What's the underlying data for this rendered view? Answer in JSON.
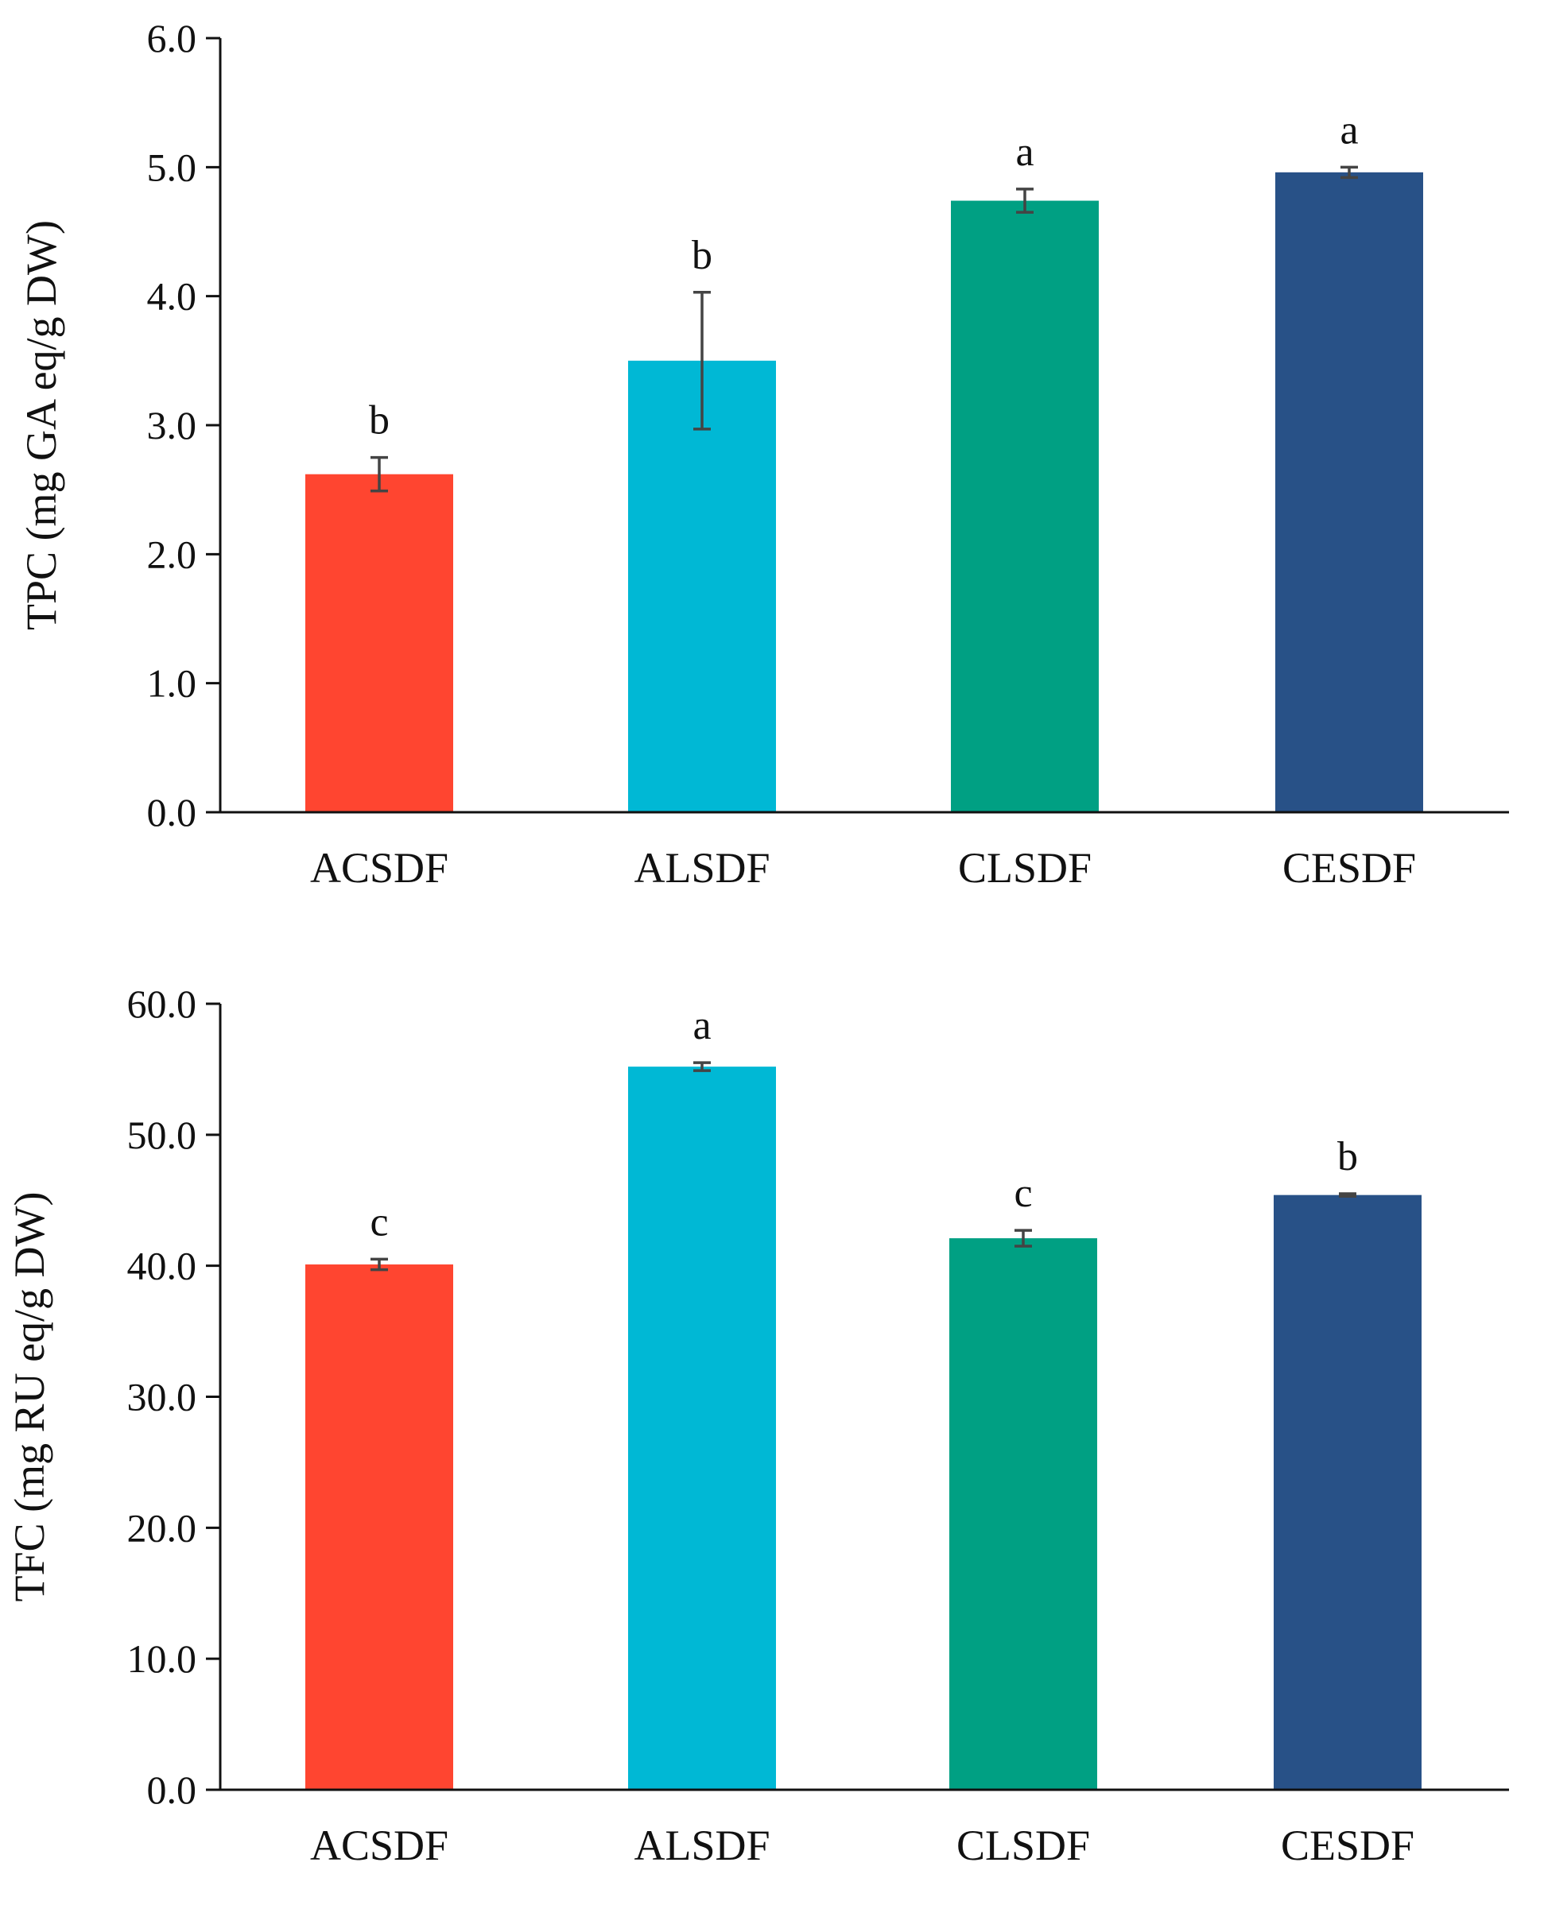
{
  "chart_data": [
    {
      "type": "bar",
      "title": "",
      "xlabel": "",
      "ylabel": "TPC (mg GA eq/g DW)",
      "ylim": [
        0,
        6
      ],
      "yticks": [
        "0.0",
        "1.0",
        "2.0",
        "3.0",
        "4.0",
        "5.0",
        "6.0"
      ],
      "categories": [
        "ACSDF",
        "ALSDF",
        "CLSDF",
        "CESDF"
      ],
      "values": [
        2.62,
        3.5,
        4.74,
        4.96
      ],
      "errors": [
        0.13,
        0.53,
        0.09,
        0.04
      ],
      "significance": [
        "b",
        "b",
        "a",
        "a"
      ],
      "colors": [
        "#ff4530",
        "#00b8d5",
        "#00a083",
        "#285187"
      ],
      "grid": false
    },
    {
      "type": "bar",
      "title": "",
      "xlabel": "",
      "ylabel": "TFC (mg RU eq/g DW)",
      "ylim": [
        0,
        60
      ],
      "yticks": [
        "0.0",
        "10.0",
        "20.0",
        "30.0",
        "40.0",
        "50.0",
        "60.0"
      ],
      "categories": [
        "ACSDF",
        "ALSDF",
        "CLSDF",
        "CESDF"
      ],
      "values": [
        40.1,
        55.2,
        42.1,
        45.4
      ],
      "errors": [
        0.4,
        0.3,
        0.6,
        0.1
      ],
      "significance": [
        "c",
        "a",
        "c",
        "b"
      ],
      "colors": [
        "#ff4530",
        "#00b8d5",
        "#00a083",
        "#285187"
      ],
      "grid": false
    }
  ]
}
